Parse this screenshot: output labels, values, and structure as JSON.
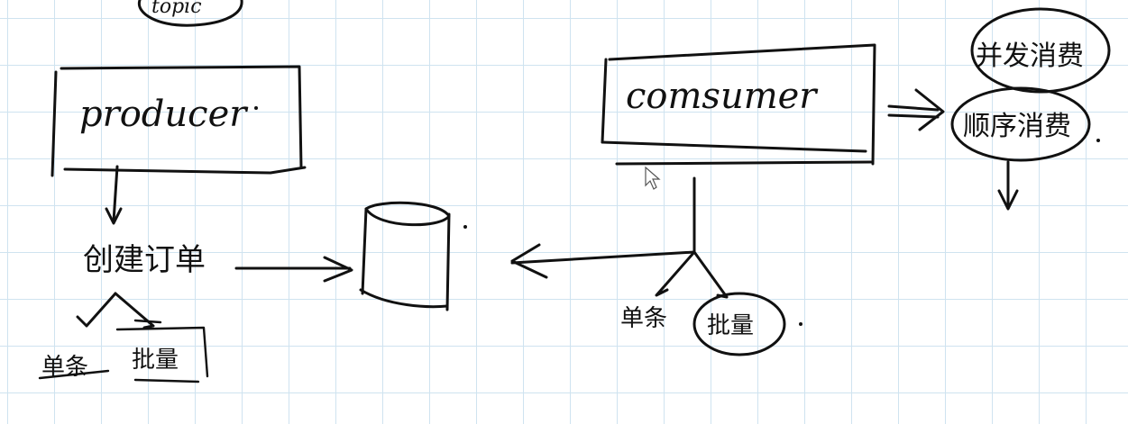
{
  "top_node": {
    "label": "topic"
  },
  "producer": {
    "label": "producer"
  },
  "consumer": {
    "label": "comsumer"
  },
  "create_order": {
    "label": "创建订单"
  },
  "producer_children": [
    {
      "label": "单条"
    },
    {
      "label": "批量"
    }
  ],
  "consumer_children": [
    {
      "label": "单条"
    },
    {
      "label": "批量"
    }
  ],
  "consume_modes": [
    {
      "label": "并发消费"
    },
    {
      "label": "顺序消费"
    }
  ]
}
